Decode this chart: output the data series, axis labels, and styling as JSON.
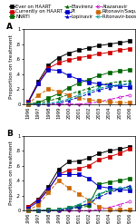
{
  "years": [
    1996,
    1997,
    1998,
    1999,
    2000,
    2001,
    2002,
    2003,
    2004,
    2005,
    2006
  ],
  "A": {
    "ever_haart": [
      0.03,
      0.3,
      0.52,
      0.62,
      0.68,
      0.72,
      0.75,
      0.78,
      0.8,
      0.82,
      0.84
    ],
    "currently_haart": [
      0.03,
      0.28,
      0.48,
      0.55,
      0.59,
      0.62,
      0.64,
      0.67,
      0.69,
      0.72,
      0.74
    ],
    "nnrti": [
      0.0,
      0.02,
      0.08,
      0.14,
      0.22,
      0.28,
      0.33,
      0.38,
      0.42,
      0.44,
      0.46
    ],
    "efavirenz": [
      0.0,
      0.01,
      0.04,
      0.08,
      0.13,
      0.17,
      0.21,
      0.25,
      0.28,
      0.3,
      0.31
    ],
    "pi": [
      0.02,
      0.27,
      0.46,
      0.45,
      0.38,
      0.33,
      0.29,
      0.27,
      0.25,
      0.24,
      0.23
    ],
    "lopinavir": [
      0.0,
      0.0,
      0.0,
      0.01,
      0.05,
      0.09,
      0.14,
      0.19,
      0.22,
      0.25,
      0.27
    ],
    "atazanavir": [
      0.0,
      0.0,
      0.0,
      0.0,
      0.0,
      0.0,
      0.01,
      0.03,
      0.06,
      0.09,
      0.12
    ],
    "ritonavir_saqu": [
      0.0,
      0.12,
      0.2,
      0.17,
      0.12,
      0.08,
      0.06,
      0.04,
      0.03,
      0.02,
      0.02
    ],
    "ritonavir_boosted_pi": [
      0.0,
      0.0,
      0.01,
      0.03,
      0.07,
      0.12,
      0.17,
      0.21,
      0.24,
      0.26,
      0.27
    ]
  },
  "B": {
    "ever_haart": [
      0.05,
      0.15,
      0.32,
      0.55,
      0.65,
      0.66,
      0.7,
      0.76,
      0.8,
      0.82,
      0.85
    ],
    "currently_haart": [
      0.05,
      0.14,
      0.28,
      0.48,
      0.54,
      0.56,
      0.6,
      0.68,
      0.72,
      0.76,
      0.82
    ],
    "nnrti": [
      0.0,
      0.0,
      0.01,
      0.01,
      0.04,
      0.06,
      0.08,
      0.35,
      0.38,
      0.4,
      0.43
    ],
    "efavirenz": [
      0.0,
      0.0,
      0.0,
      0.0,
      0.02,
      0.04,
      0.06,
      0.22,
      0.26,
      0.28,
      0.32
    ],
    "pi": [
      0.03,
      0.12,
      0.28,
      0.48,
      0.48,
      0.48,
      0.43,
      0.32,
      0.3,
      0.28,
      0.27
    ],
    "lopinavir": [
      0.0,
      0.0,
      0.0,
      0.0,
      0.02,
      0.05,
      0.1,
      0.18,
      0.24,
      0.28,
      0.33
    ],
    "atazanavir": [
      0.0,
      0.0,
      0.0,
      0.0,
      0.0,
      0.0,
      0.0,
      0.01,
      0.04,
      0.08,
      0.12
    ],
    "ritonavir_saqu": [
      0.0,
      0.08,
      0.24,
      0.4,
      0.3,
      0.22,
      0.14,
      0.05,
      0.02,
      0.01,
      0.01
    ],
    "ritonavir_boosted_pi": [
      0.0,
      0.0,
      0.0,
      0.01,
      0.04,
      0.08,
      0.15,
      0.22,
      0.28,
      0.3,
      0.3
    ]
  },
  "series_styles": {
    "ever_haart": {
      "color": "#000000",
      "linestyle": "-",
      "marker": "s",
      "label": "Ever on HAART",
      "mfc": "#000000"
    },
    "currently_haart": {
      "color": "#cc0000",
      "linestyle": "-",
      "marker": "s",
      "label": "Currently on HAART",
      "mfc": "#cc0000"
    },
    "nnrti": {
      "color": "#006600",
      "linestyle": "-",
      "marker": "s",
      "label": "NNRTI",
      "mfc": "#006600"
    },
    "efavirenz": {
      "color": "#006600",
      "linestyle": "--",
      "marker": "^",
      "label": "Efavirenz",
      "mfc": "#006600"
    },
    "pi": {
      "color": "#0000cc",
      "linestyle": "-",
      "marker": "s",
      "label": "PI",
      "mfc": "#0000cc"
    },
    "lopinavir": {
      "color": "#0000cc",
      "linestyle": "--",
      "marker": "^",
      "label": "Lopinavir",
      "mfc": "#0000cc"
    },
    "atazanavir": {
      "color": "#cc00cc",
      "linestyle": "--",
      "marker": "o",
      "label": "Atazanavir",
      "mfc": "none"
    },
    "ritonavir_saqu": {
      "color": "#cc6600",
      "linestyle": "--",
      "marker": "s",
      "label": "Ritonavir/Saquinavir",
      "mfc": "#cc6600"
    },
    "ritonavir_boosted_pi": {
      "color": "#009999",
      "linestyle": "--",
      "marker": "o",
      "label": "Ritonavir-boosted PI",
      "mfc": "none"
    }
  },
  "ylim": [
    0,
    1.0
  ],
  "ytick_vals": [
    0.0,
    0.2,
    0.4,
    0.6,
    0.8,
    1.0
  ],
  "ytick_labels": [
    "0",
    ".2",
    ".4",
    ".6",
    ".8",
    "1"
  ],
  "ylabel": "Proportion on treatment",
  "panel_labels": [
    "A",
    "B"
  ],
  "legend_ncol": 3,
  "legend_fontsize": 3.8,
  "tick_fontsize": 3.8,
  "label_fontsize": 4.2,
  "markersize": 2.2,
  "linewidth": 0.7,
  "background_color": "#ffffff"
}
